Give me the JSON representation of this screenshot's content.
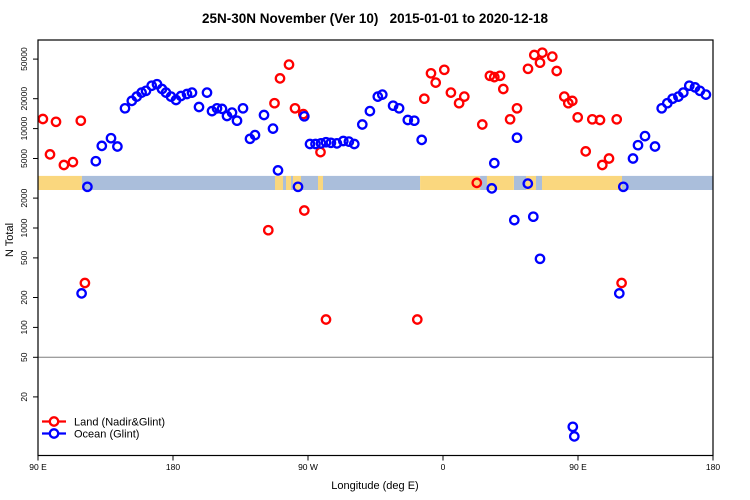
{
  "title": "25N-30N November (Ver 10)   2015-01-01 to 2020-12-18",
  "axes": {
    "x": {
      "label": "Longitude (deg E)",
      "range_deg": [
        90,
        540
      ],
      "ticks": [
        {
          "deg": 90,
          "label": "90 E"
        },
        {
          "deg": 180,
          "label": "180"
        },
        {
          "deg": 270,
          "label": "90 W"
        },
        {
          "deg": 360,
          "label": "0"
        },
        {
          "deg": 450,
          "label": "90 E"
        },
        {
          "deg": 540,
          "label": "180"
        }
      ]
    },
    "y": {
      "label": "N Total",
      "scale": "log",
      "ticks": [
        20,
        50,
        100,
        200,
        500,
        1000,
        2000,
        5000,
        10000,
        20000,
        50000
      ]
    }
  },
  "refline": {
    "value": 50,
    "color": "#7F7F7F"
  },
  "legend": [
    {
      "label": "Land (Nadir&Glint)",
      "color": "#FF0000"
    },
    {
      "label": "Ocean (Glint)",
      "color": "#0000FF"
    }
  ],
  "colors": {
    "land": "#FF0000",
    "ocean": "#0000FF",
    "band_land": "#FAD77E",
    "band_ocean": "#AABEDB",
    "axis": "#000000"
  },
  "band": {
    "description": "land/ocean surface strip along longitude",
    "y_range": [
      2410,
      3340
    ],
    "segments": [
      {
        "from": 90,
        "to": 119.3,
        "surface": "land"
      },
      {
        "from": 119.3,
        "to": 248,
        "surface": "ocean"
      },
      {
        "from": 248,
        "to": 253.3,
        "surface": "land"
      },
      {
        "from": 253.3,
        "to": 255.3,
        "surface": "ocean"
      },
      {
        "from": 255.3,
        "to": 258.7,
        "surface": "land"
      },
      {
        "from": 258.7,
        "to": 260,
        "surface": "ocean"
      },
      {
        "from": 260,
        "to": 265.3,
        "surface": "land"
      },
      {
        "from": 265.3,
        "to": 276.7,
        "surface": "ocean"
      },
      {
        "from": 276.7,
        "to": 280,
        "surface": "land"
      },
      {
        "from": 280,
        "to": 344.7,
        "surface": "ocean"
      },
      {
        "from": 344.7,
        "to": 384.7,
        "surface": "land"
      },
      {
        "from": 384.7,
        "to": 389.3,
        "surface": "ocean"
      },
      {
        "from": 389.3,
        "to": 407.3,
        "surface": "land"
      },
      {
        "from": 407.3,
        "to": 415.3,
        "surface": "ocean"
      },
      {
        "from": 415.3,
        "to": 422,
        "surface": "land"
      },
      {
        "from": 422,
        "to": 426,
        "surface": "ocean"
      },
      {
        "from": 426,
        "to": 479.3,
        "surface": "land"
      },
      {
        "from": 479.3,
        "to": 540,
        "surface": "ocean"
      }
    ]
  },
  "chart_data": {
    "type": "scatter",
    "title": "25N-30N November (Ver 10)   2015-01-01 to 2020-12-18",
    "xlabel": "Longitude (deg E)",
    "ylabel": "N Total",
    "x_unit": "degrees longitude, unwrapped axis from 90E eastward through 180, 90W, 0, 90E to 180",
    "y_scale": "log",
    "series": [
      {
        "name": "Land (Nadir&Glint)",
        "color": "#FF0000",
        "points": [
          [
            93.3,
            12500
          ],
          [
            98,
            5500
          ],
          [
            102,
            11700
          ],
          [
            107.3,
            4300
          ],
          [
            113.3,
            4600
          ],
          [
            118.5,
            12000
          ],
          [
            121.3,
            280
          ],
          [
            243.5,
            950
          ],
          [
            247.7,
            18000
          ],
          [
            251.3,
            32000
          ],
          [
            257.3,
            44000
          ],
          [
            261.3,
            16000
          ],
          [
            266.9,
            14000
          ],
          [
            267.5,
            1500
          ],
          [
            278.3,
            5800
          ],
          [
            282,
            120
          ],
          [
            342.9,
            120
          ],
          [
            347.5,
            20000
          ],
          [
            352,
            36000
          ],
          [
            355.1,
            29000
          ],
          [
            360.9,
            39000
          ],
          [
            365.3,
            23000
          ],
          [
            370.7,
            18000
          ],
          [
            374.2,
            21000
          ],
          [
            382.5,
            2840
          ],
          [
            386.2,
            11000
          ],
          [
            391.3,
            34000
          ],
          [
            394.2,
            33000
          ],
          [
            398,
            34000
          ],
          [
            400.2,
            25000
          ],
          [
            404.7,
            12400
          ],
          [
            409.3,
            16000
          ],
          [
            416.7,
            40000
          ],
          [
            420.9,
            55000
          ],
          [
            424.7,
            46000
          ],
          [
            426.2,
            58000
          ],
          [
            432.9,
            53000
          ],
          [
            435.8,
            38000
          ],
          [
            440.9,
            21000
          ],
          [
            443.5,
            18000
          ],
          [
            446.2,
            19000
          ],
          [
            449.8,
            13000
          ],
          [
            455.1,
            5900
          ],
          [
            459.5,
            12400
          ],
          [
            464.7,
            12200
          ],
          [
            466.2,
            4300
          ],
          [
            470.7,
            5000
          ],
          [
            475.8,
            12400
          ],
          [
            479.1,
            280
          ]
        ]
      },
      {
        "name": "Ocean (Glint)",
        "color": "#0000FF",
        "points": [
          [
            119.1,
            220
          ],
          [
            122.9,
            2600
          ],
          [
            128.5,
            4700
          ],
          [
            132.5,
            6700
          ],
          [
            138.7,
            8000
          ],
          [
            142.9,
            6600
          ],
          [
            148,
            16000
          ],
          [
            152.5,
            19000
          ],
          [
            155.8,
            21000
          ],
          [
            159.1,
            23000
          ],
          [
            162,
            24000
          ],
          [
            165.8,
            27000
          ],
          [
            169.3,
            28000
          ],
          [
            172.7,
            25000
          ],
          [
            175.3,
            23000
          ],
          [
            178.7,
            21000
          ],
          [
            182,
            19400
          ],
          [
            185.3,
            21300
          ],
          [
            189.3,
            22300
          ],
          [
            192.7,
            23000
          ],
          [
            197.3,
            16500
          ],
          [
            202.7,
            23000
          ],
          [
            206,
            15000
          ],
          [
            209.3,
            16000
          ],
          [
            212.7,
            15800
          ],
          [
            216,
            13400
          ],
          [
            219.3,
            14500
          ],
          [
            222.7,
            12000
          ],
          [
            226.7,
            16000
          ],
          [
            231.3,
            7900
          ],
          [
            234.7,
            8600
          ],
          [
            240.7,
            13700
          ],
          [
            246.7,
            10000
          ],
          [
            250,
            3800
          ],
          [
            263.3,
            2600
          ],
          [
            267.5,
            13300
          ],
          [
            271.3,
            7000
          ],
          [
            275,
            7000
          ],
          [
            278.7,
            7100
          ],
          [
            282,
            7300
          ],
          [
            285.3,
            7200
          ],
          [
            289.3,
            7100
          ],
          [
            293.5,
            7500
          ],
          [
            297.3,
            7400
          ],
          [
            300.9,
            7000
          ],
          [
            306.2,
            11000
          ],
          [
            311.3,
            15000
          ],
          [
            316.5,
            21000
          ],
          [
            319.5,
            22000
          ],
          [
            326.7,
            17000
          ],
          [
            330.7,
            16000
          ],
          [
            336.5,
            12200
          ],
          [
            340.9,
            12000
          ],
          [
            345.8,
            7700
          ],
          [
            392.5,
            2500
          ],
          [
            394.2,
            4500
          ],
          [
            407.5,
            1200
          ],
          [
            409.3,
            8100
          ],
          [
            416.5,
            2800
          ],
          [
            420.2,
            1300
          ],
          [
            424.7,
            490
          ],
          [
            446.5,
            10
          ],
          [
            447.5,
            8
          ],
          [
            477.5,
            220
          ],
          [
            480.2,
            2600
          ],
          [
            486.7,
            5000
          ],
          [
            490,
            6800
          ],
          [
            494.7,
            8400
          ],
          [
            501.3,
            6600
          ],
          [
            505.8,
            16000
          ],
          [
            509.5,
            18000
          ],
          [
            513.1,
            20000
          ],
          [
            516.9,
            21000
          ],
          [
            520.2,
            23000
          ],
          [
            524.2,
            27000
          ],
          [
            528,
            26000
          ],
          [
            531.3,
            24000
          ],
          [
            535.3,
            22000
          ]
        ]
      }
    ]
  }
}
